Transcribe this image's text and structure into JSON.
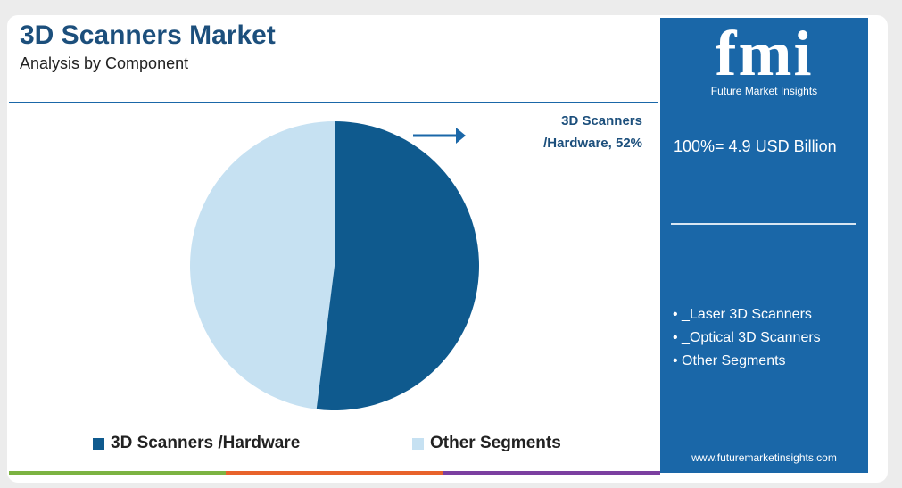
{
  "chart_data": {
    "type": "pie",
    "title": "3D Scanners Market",
    "subtitle": "Analysis by Component",
    "categories": [
      "3D Scanners /Hardware",
      "Other Segments"
    ],
    "values": [
      52,
      48
    ],
    "colors": [
      "#0f5a8e",
      "#c6e1f2"
    ],
    "annotation": "3D Scanners /Hardware, 52%",
    "legend": "bottom"
  },
  "sidebar": {
    "logo": "fmi",
    "logo_caption": "Future Market Insights",
    "total": "100%= 4.9 USD Billion",
    "items": [
      "_Laser 3D Scanners",
      "_Optical 3D Scanners",
      "Other Segments"
    ],
    "website": "www.futuremarketinsights.com"
  }
}
